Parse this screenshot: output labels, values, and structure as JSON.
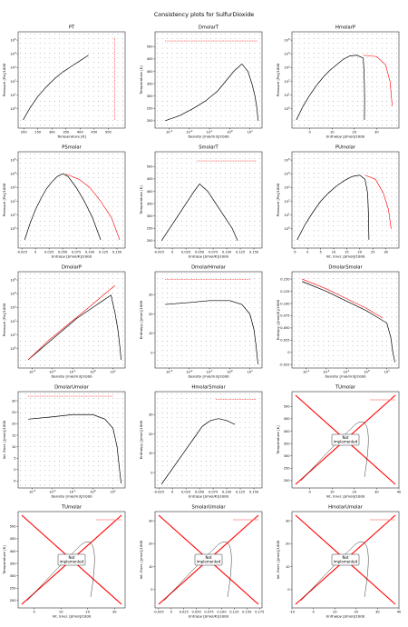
{
  "figure": {
    "title": "Consistency plots for SulfurDioxide"
  },
  "chart_data": [
    {
      "id": "PT",
      "type": "line",
      "title": "PT",
      "xlabel": "Temperature [K]",
      "ylabel": "Pressure [Pa]/1000",
      "xlim": [
        180,
        560
      ],
      "ylim": [
        -1.4,
        5.6
      ],
      "ylog": true,
      "xticks": [
        200,
        250,
        300,
        350,
        400,
        450,
        500
      ],
      "yticks": [
        0,
        1,
        2,
        3,
        4,
        5
      ],
      "sat_curve": {
        "x": [
          198,
          220,
          250,
          280,
          310,
          340,
          370,
          400,
          430
        ],
        "y": [
          -0.8,
          0.0,
          0.9,
          1.6,
          2.2,
          2.7,
          3.1,
          3.5,
          3.9
        ]
      },
      "grid_T": [
        200,
        215,
        230,
        245,
        260,
        275,
        290,
        305,
        320,
        335,
        350,
        365,
        380,
        395,
        410,
        425,
        440,
        455,
        470,
        485,
        500,
        515,
        530
      ],
      "grid_logP": [
        -0.8,
        -0.5,
        -0.2,
        0.1,
        0.4,
        0.7,
        1.0,
        1.3,
        1.6,
        1.9,
        2.2,
        2.5,
        2.8,
        3.1,
        3.4,
        3.7,
        4.0,
        4.3,
        4.6,
        4.9,
        5.2
      ],
      "red_line": {
        "x": 523,
        "y": [
          -0.8,
          5.2
        ]
      }
    },
    {
      "id": "DmolarT",
      "type": "line",
      "title": "DmolarT",
      "xlabel": "Density [mol/m3]/1000",
      "ylabel": "Temperature [K]",
      "xlim": [
        -3.7,
        1.6
      ],
      "ylim": [
        170,
        560
      ],
      "xlog": true,
      "xticks": [
        -3,
        -2,
        -1,
        0,
        1
      ],
      "yticks": [
        200,
        250,
        300,
        350,
        400,
        450,
        500
      ],
      "dome_vap": {
        "x": [
          -3.2,
          -2.5,
          -1.8,
          -1.2,
          -0.6,
          -0.2,
          0.2,
          0.6
        ],
        "y": [
          200,
          220,
          250,
          280,
          320,
          360,
          400,
          430
        ]
      },
      "dome_liq": {
        "x": [
          0.6,
          0.9,
          1.1,
          1.25,
          1.35,
          1.4
        ],
        "y": [
          430,
          400,
          350,
          300,
          250,
          200
        ]
      },
      "red_line": {
        "x": [
          -3.2,
          1.4
        ],
        "y": 523
      }
    },
    {
      "id": "HmolarP",
      "type": "line",
      "title": "HmolarP",
      "xlabel": "Enthalpy [J/mol]/1000",
      "ylabel": "Pressure [Pa]/1000",
      "xlim": [
        -8,
        40
      ],
      "ylim": [
        -1.4,
        5.6
      ],
      "ylog": true,
      "xticks": [
        0,
        10,
        20,
        30
      ],
      "yticks": [
        0,
        1,
        2,
        3,
        4,
        5
      ],
      "dome_liq": {
        "x": [
          -6,
          -3,
          0,
          3,
          6,
          9,
          12,
          15
        ],
        "y": [
          -0.8,
          0.2,
          1.0,
          1.7,
          2.3,
          2.8,
          3.2,
          3.6
        ]
      },
      "dome_top": {
        "x": [
          15,
          18,
          21,
          24
        ],
        "y": [
          3.6,
          3.85,
          3.9,
          3.7
        ]
      },
      "dome_vap": {
        "x": [
          24,
          24.3,
          24.5,
          24.6,
          24.5
        ],
        "y": [
          3.7,
          2.8,
          1.8,
          0.6,
          -0.8
        ]
      },
      "red_edge": {
        "x": [
          24,
          30,
          34,
          36,
          37
        ],
        "y": [
          3.9,
          3.8,
          3.2,
          2.0,
          0.2
        ]
      }
    },
    {
      "id": "PSmolar",
      "type": "line",
      "title": "PSmolar",
      "xlabel": "Entropy [J/mol/K]/1000",
      "ylabel": "Pressure [Pa]/1000",
      "xlim": [
        -0.032,
        0.165
      ],
      "ylim": [
        -1.4,
        5.6
      ],
      "ylog": true,
      "xticks": [
        -0.025,
        0.0,
        0.025,
        0.05,
        0.075,
        0.1,
        0.125,
        0.15
      ],
      "yticks": [
        0,
        1,
        2,
        3,
        4,
        5
      ],
      "dome_liq": {
        "x": [
          -0.02,
          -0.01,
          0.0,
          0.01,
          0.02,
          0.03,
          0.04,
          0.05
        ],
        "y": [
          -0.8,
          0.4,
          1.4,
          2.2,
          2.9,
          3.4,
          3.8,
          4.0
        ]
      },
      "dome_vap": {
        "x": [
          0.05,
          0.06,
          0.075,
          0.09,
          0.105,
          0.12
        ],
        "y": [
          4.0,
          3.8,
          3.0,
          2.0,
          0.8,
          -0.8
        ]
      },
      "red_edge": {
        "x": [
          0.055,
          0.08,
          0.1,
          0.12,
          0.14,
          0.155
        ],
        "y": [
          4.0,
          3.6,
          3.0,
          2.0,
          0.8,
          -0.8
        ]
      }
    },
    {
      "id": "SmolarT",
      "type": "line",
      "title": "SmolarT",
      "xlabel": "Entropy [J/mol/K]/1000",
      "ylabel": "Temperature [K]",
      "xlim": [
        -0.032,
        0.165
      ],
      "ylim": [
        170,
        560
      ],
      "xticks": [
        -0.025,
        0.0,
        0.025,
        0.05,
        0.075,
        0.1,
        0.125,
        0.15
      ],
      "yticks": [
        200,
        250,
        300,
        350,
        400,
        450,
        500
      ],
      "dome_liq": {
        "x": [
          -0.02,
          -0.005,
          0.01,
          0.025,
          0.04,
          0.05
        ],
        "y": [
          200,
          250,
          300,
          350,
          400,
          430
        ]
      },
      "dome_vap": {
        "x": [
          0.05,
          0.065,
          0.08,
          0.095,
          0.11,
          0.12
        ],
        "y": [
          430,
          400,
          350,
          300,
          250,
          200
        ]
      },
      "red_line": {
        "x": [
          0.045,
          0.155
        ],
        "y": 523
      }
    },
    {
      "id": "PUmolar",
      "type": "line",
      "title": "PUmolar",
      "xlabel": "Int. Ener. [J/mol]/1000",
      "ylabel": "Pressure [Pa]/1000",
      "xlim": [
        -6,
        35
      ],
      "ylim": [
        -1.4,
        5.6
      ],
      "ylog": true,
      "xticks": [
        -5,
        0,
        5,
        10,
        15,
        20,
        25,
        30
      ],
      "yticks": [
        0,
        1,
        2,
        3,
        4,
        5
      ],
      "dome_liq": {
        "x": [
          -4,
          -1,
          2,
          5,
          8,
          11,
          14,
          17
        ],
        "y": [
          -0.8,
          0.3,
          1.2,
          2.0,
          2.6,
          3.1,
          3.5,
          3.8
        ]
      },
      "dome_vap": {
        "x": [
          17,
          20,
          22,
          23,
          23.3,
          23.5
        ],
        "y": [
          3.8,
          3.9,
          3.6,
          2.6,
          1.2,
          -0.8
        ]
      },
      "red_edge": {
        "x": [
          22,
          26,
          29,
          31,
          32
        ],
        "y": [
          3.9,
          3.6,
          2.6,
          1.4,
          0.0
        ]
      }
    },
    {
      "id": "DmolarP",
      "type": "line",
      "title": "DmolarP",
      "xlabel": "Density [mol/m3]/1000",
      "ylabel": "Pressure [Pa]/1000",
      "xlim": [
        -3.7,
        1.6
      ],
      "ylim": [
        -1.4,
        5.6
      ],
      "xlog": true,
      "ylog": true,
      "xticks": [
        -3,
        -2,
        -1,
        0,
        1
      ],
      "yticks": [
        0,
        1,
        2,
        3,
        4,
        5
      ],
      "dome_vap": {
        "x": [
          -3.2,
          -2.4,
          -1.6,
          -0.8,
          0.0,
          0.5,
          0.9
        ],
        "y": [
          -0.8,
          0.2,
          1.2,
          2.2,
          3.0,
          3.5,
          3.9
        ]
      },
      "dome_liq": {
        "x": [
          0.9,
          1.1,
          1.25,
          1.35,
          1.4
        ],
        "y": [
          3.9,
          2.6,
          1.3,
          0.0,
          -0.8
        ]
      },
      "red_edge": {
        "x": [
          -3.2,
          -2.2,
          -1.2,
          -0.2,
          0.6,
          1.1
        ],
        "y": [
          -0.8,
          0.6,
          1.8,
          3.0,
          4.0,
          4.6
        ]
      }
    },
    {
      "id": "DmolarHmolar",
      "type": "line",
      "title": "DmolarHmolar",
      "xlabel": "Density [mol/m3]/1000",
      "ylabel": "Enthalpy [J/mol]/1000",
      "xlim": [
        -3.7,
        1.6
      ],
      "ylim": [
        -8,
        42
      ],
      "xlog": true,
      "xticks": [
        -3,
        -2,
        -1,
        0,
        1
      ],
      "yticks": [
        0,
        10,
        20,
        30
      ],
      "dome_vap": {
        "x": [
          -3.2,
          -2.0,
          -1.0,
          0.0,
          0.6,
          1.0
        ],
        "y": [
          25,
          26,
          27,
          27,
          25,
          20
        ]
      },
      "dome_liq": {
        "x": [
          1.0,
          1.2,
          1.3,
          1.4
        ],
        "y": [
          20,
          12,
          4,
          -6
        ]
      },
      "red_line": {
        "x": [
          -3.2,
          1.0
        ],
        "y": 38
      }
    },
    {
      "id": "DmolarSmolar",
      "type": "line",
      "title": "DmolarSmolar",
      "xlabel": "Density [mol/m3]/1000",
      "ylabel": "Entropy [J/mol/K]/1000",
      "xlim": [
        -3.7,
        1.6
      ],
      "ylim": [
        -0.032,
        0.165
      ],
      "xlog": true,
      "xticks": [
        -3,
        -2,
        -1,
        0,
        1
      ],
      "yticks": [
        -0.025,
        0.0,
        0.025,
        0.05,
        0.075,
        0.1,
        0.125,
        0.15
      ],
      "dome_vap": {
        "x": [
          -3.2,
          -2.0,
          -1.0,
          0.0,
          0.6,
          1.0
        ],
        "y": [
          0.145,
          0.125,
          0.105,
          0.085,
          0.07,
          0.06
        ]
      },
      "dome_liq": {
        "x": [
          1.0,
          1.2,
          1.3,
          1.4
        ],
        "y": [
          0.06,
          0.03,
          0.0,
          -0.02
        ]
      },
      "red_edge": {
        "x": [
          -3.2,
          -2.0,
          -1.0,
          0.0,
          0.8
        ],
        "y": [
          0.15,
          0.13,
          0.11,
          0.09,
          0.07
        ]
      }
    },
    {
      "id": "DmolarUmolar",
      "type": "line",
      "title": "DmolarUmolar",
      "xlabel": "Density [mol/m3]/1000",
      "ylabel": "Int. Ener. [J/mol]/1000",
      "xlim": [
        -3.7,
        1.6
      ],
      "ylim": [
        -8,
        34
      ],
      "xlog": true,
      "xticks": [
        -3,
        -2,
        -1,
        0,
        1
      ],
      "yticks": [
        -5,
        0,
        5,
        10,
        15,
        20,
        25,
        30
      ],
      "dome_vap": {
        "x": [
          -3.2,
          -2.0,
          -1.0,
          0.0,
          0.6,
          1.0
        ],
        "y": [
          22,
          23,
          24,
          24,
          22,
          18
        ]
      },
      "dome_liq": {
        "x": [
          1.0,
          1.2,
          1.3,
          1.4
        ],
        "y": [
          18,
          10,
          2,
          -6
        ]
      },
      "red_line": {
        "x": [
          -3.2,
          1.0
        ],
        "y": 32
      }
    },
    {
      "id": "HmolarSmolar",
      "type": "line",
      "title": "HmolarSmolar",
      "xlabel": "Entropy [J/mol/K]/1000",
      "ylabel": "Enthalpy [J/mol]/1000",
      "xlim": [
        -0.032,
        0.165
      ],
      "ylim": [
        -8,
        42
      ],
      "xticks": [
        -0.025,
        0.0,
        0.025,
        0.05,
        0.075,
        0.1,
        0.125,
        0.15
      ],
      "yticks": [
        0,
        10,
        20,
        30
      ],
      "dome_liq": {
        "x": [
          -0.02,
          0.0,
          0.02,
          0.04,
          0.055
        ],
        "y": [
          -6,
          2,
          10,
          18,
          24
        ]
      },
      "dome_vap": {
        "x": [
          0.055,
          0.07,
          0.085,
          0.1,
          0.115
        ],
        "y": [
          24,
          27,
          28,
          27,
          25
        ]
      },
      "red_line": {
        "x": [
          0.08,
          0.155
        ],
        "y": 38
      }
    },
    {
      "id": "TUmolar",
      "type": "line",
      "title": "TUmolar",
      "xlabel": "Int. Ener. [J/mol]/1000",
      "ylabel": "Temperature [K]",
      "xlim": [
        -8,
        40
      ],
      "ylim": [
        170,
        560
      ],
      "xticks": [
        -10,
        0,
        10,
        20,
        30,
        40
      ],
      "yticks": [
        200,
        250,
        300,
        350,
        400,
        450,
        500
      ],
      "not_implemented": "Not\nimplemented"
    },
    {
      "id": "TUmolar2",
      "type": "line",
      "title": "TUmolar",
      "xlabel": "Int. Ener. [J/mol]/1000",
      "ylabel": "Temperature [K]",
      "xlim": [
        -6,
        34
      ],
      "ylim": [
        170,
        560
      ],
      "xticks": [
        0,
        10,
        20,
        30
      ],
      "yticks": [
        200,
        250,
        300,
        350,
        400,
        450,
        500
      ],
      "not_implemented": "Not\nimplemented"
    },
    {
      "id": "SmolarUmolar",
      "type": "line",
      "title": "SmolarUmolar",
      "xlabel": "Entropy [J/mol/K]/1000",
      "ylabel": "Int. Ener. [J/mol]/1000",
      "xlim": [
        -0.032,
        0.18
      ],
      "ylim": [
        -8,
        34
      ],
      "xticks": [
        -0.025,
        0.0,
        0.025,
        0.05,
        0.075,
        0.1,
        0.125,
        0.15,
        0.175
      ],
      "yticks": [
        0,
        10,
        20,
        30
      ],
      "not_implemented": "Not\nimplemented"
    },
    {
      "id": "HmolarUmolar",
      "type": "line",
      "title": "HmolarUmolar",
      "xlabel": "Enthalpy [J/mol]/1000",
      "ylabel": "Int. Ener. [J/mol]/1000",
      "xlim": [
        -10,
        40
      ],
      "ylim": [
        -8,
        34
      ],
      "xticks": [
        -10,
        0,
        10,
        20,
        30,
        40
      ],
      "yticks": [
        0,
        10,
        20,
        30
      ],
      "not_implemented": "Not\nimplemented"
    }
  ]
}
